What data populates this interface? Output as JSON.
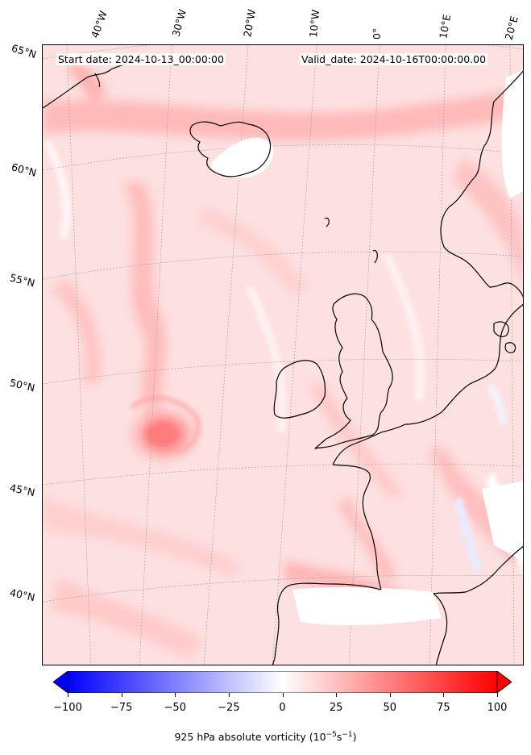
{
  "header": {
    "start_date": "Start date: 2024-10-13_00:00:00",
    "valid_date": "Valid_date: 2024-10-16T00:00:00.00"
  },
  "longitude_labels": [
    "40°W",
    "30°W",
    "20°W",
    "10°W",
    "0°",
    "10°E",
    "20°E"
  ],
  "latitude_labels": [
    "65°N",
    "60°N",
    "55°N",
    "50°N",
    "45°N",
    "40°N"
  ],
  "field": {
    "variable": "925 hPa absolute vorticity",
    "unit_prefix": "(10",
    "unit_exp1": "−5",
    "unit_mid": "s",
    "unit_exp2": "−1",
    "unit_suffix": ")",
    "colormap": "bwr",
    "min": -100,
    "max": 100,
    "extend": "both",
    "feature_cyclone": {
      "lat": 47.5,
      "lon": -27,
      "max_value": 50
    }
  },
  "colorbar": {
    "ticks": [
      "−100",
      "−75",
      "−50",
      "−25",
      "0",
      "25",
      "50",
      "75",
      "100"
    ],
    "colors": {
      "low": "#0000ff",
      "mid": "#ffffff",
      "high": "#ff0000"
    }
  },
  "map_colors": {
    "land_mask": "#ffffff",
    "coastline": "#000000",
    "gridline": "#9a9a9a"
  }
}
